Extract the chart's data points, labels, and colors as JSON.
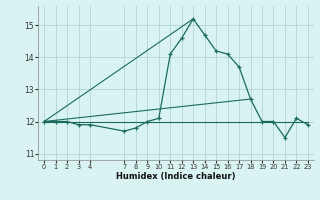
{
  "title": "",
  "xlabel": "Humidex (Indice chaleur)",
  "background_color": "#d9f2f2",
  "grid_color": "#b8d8d8",
  "line_color": "#1a6b5e",
  "x_hours": [
    0,
    1,
    2,
    3,
    4,
    7,
    8,
    9,
    10,
    11,
    12,
    13,
    14,
    15,
    16,
    17,
    18,
    19,
    20,
    21,
    22,
    23
  ],
  "y_main": [
    12.0,
    12.0,
    12.0,
    11.9,
    11.9,
    11.7,
    11.8,
    12.0,
    12.1,
    14.1,
    14.6,
    15.2,
    14.7,
    14.2,
    14.1,
    13.7,
    12.7,
    12.0,
    12.0,
    11.5,
    12.1,
    11.9
  ],
  "flat_line_x": [
    0,
    23
  ],
  "flat_line_y": [
    12.0,
    12.0
  ],
  "diag_line_x": [
    0,
    18
  ],
  "diag_line_y": [
    12.0,
    12.7
  ],
  "diag_line2_x": [
    0,
    13
  ],
  "diag_line2_y": [
    12.0,
    15.2
  ],
  "ylim": [
    10.8,
    15.6
  ],
  "yticks": [
    11,
    12,
    13,
    14,
    15
  ],
  "xlim": [
    -0.5,
    23.5
  ],
  "xtick_positions": [
    0,
    1,
    2,
    3,
    4,
    7,
    8,
    9,
    10,
    11,
    12,
    13,
    14,
    15,
    16,
    17,
    18,
    19,
    20,
    21,
    22,
    23
  ],
  "xtick_labels": [
    "0",
    "1",
    "2",
    "3",
    "4",
    "7",
    "8",
    "9",
    "10",
    "11",
    "12",
    "13",
    "14",
    "15",
    "16",
    "17",
    "18",
    "19",
    "20",
    "21",
    "22",
    "23"
  ]
}
